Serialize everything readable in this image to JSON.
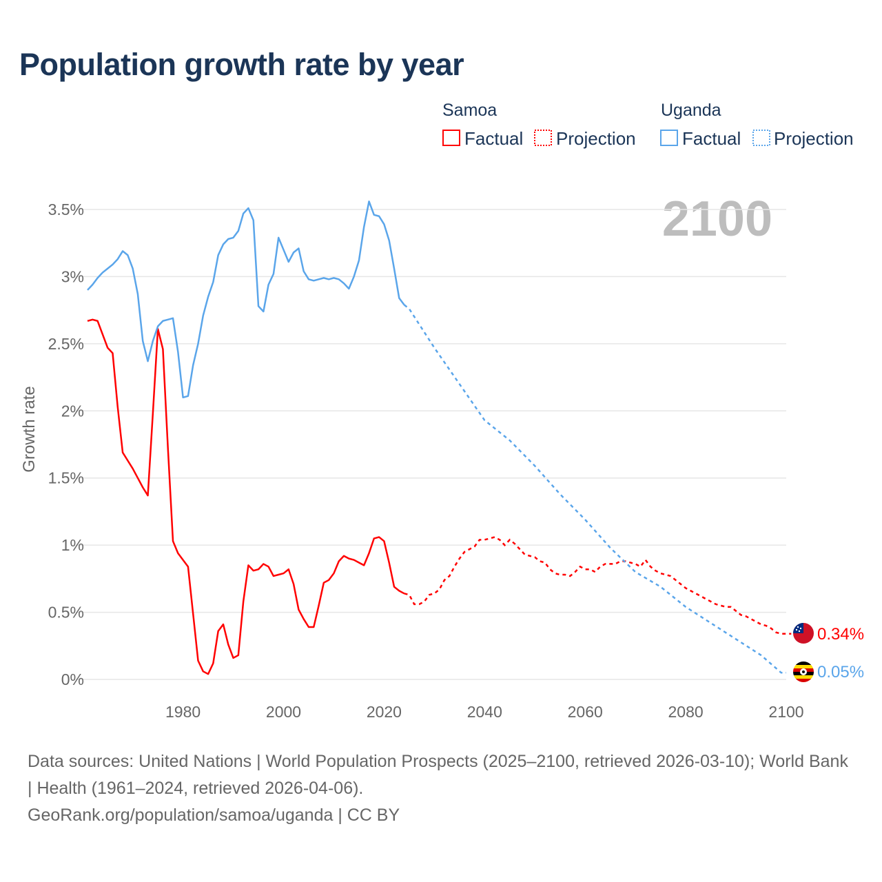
{
  "title": "Population growth rate by year",
  "legend": {
    "groups": [
      {
        "name": "Samoa",
        "color": "#ff0000",
        "factual": "Factual",
        "projection": "Projection"
      },
      {
        "name": "Uganda",
        "color": "#5aa5ea",
        "factual": "Factual",
        "projection": "Projection"
      }
    ],
    "placement": "top-right"
  },
  "year_watermark": "2100",
  "footer": {
    "sources": "Data sources: United Nations | World Population Prospects (2025–2100, retrieved 2026-03-10); World Bank | Health (1961–2024, retrieved 2026-04-06).",
    "site": "GeoRank.org/population/samoa/uganda | CC BY"
  },
  "chart_data": {
    "type": "line",
    "title": "Population growth rate by year",
    "xlabel": "",
    "ylabel": "Growth rate",
    "xlim": [
      1961,
      2100
    ],
    "ylim": [
      0,
      3.5
    ],
    "x_ticks": [
      1980,
      2000,
      2020,
      2040,
      2060,
      2080,
      2100
    ],
    "y_ticks": [
      0,
      0.5,
      1,
      1.5,
      2,
      2.5,
      3,
      3.5
    ],
    "y_tick_labels": [
      "0%",
      "0.5%",
      "1%",
      "1.5%",
      "2%",
      "2.5%",
      "3%",
      "3.5%"
    ],
    "x_tick_labels": [
      "1980",
      "2000",
      "2020",
      "2040",
      "2060",
      "2080",
      "2100"
    ],
    "grid": true,
    "series": [
      {
        "name": "Samoa",
        "color": "#ff0000",
        "end_label": "0.34%",
        "factual": {
          "start_year": 1961,
          "values": [
            2.67,
            2.68,
            2.67,
            2.57,
            2.47,
            2.43,
            2.03,
            1.69,
            1.63,
            1.57,
            1.5,
            1.43,
            1.37,
            1.98,
            2.61,
            2.46,
            1.72,
            1.03,
            0.94,
            0.89,
            0.84,
            0.49,
            0.14,
            0.06,
            0.04,
            0.12,
            0.36,
            0.41,
            0.26,
            0.16,
            0.18,
            0.58,
            0.85,
            0.81,
            0.82,
            0.86,
            0.84,
            0.77,
            0.78,
            0.79,
            0.82,
            0.71,
            0.52,
            0.45,
            0.39,
            0.39,
            0.55,
            0.72,
            0.74,
            0.79,
            0.88,
            0.92,
            0.9,
            0.89,
            0.87,
            0.85,
            0.94,
            1.05,
            1.06,
            1.03,
            0.87,
            0.69,
            0.66,
            0.64
          ]
        },
        "projection": {
          "start_year": 2024,
          "values": [
            0.64,
            0.63,
            0.56,
            0.56,
            0.58,
            0.63,
            0.64,
            0.67,
            0.74,
            0.77,
            0.84,
            0.9,
            0.95,
            0.97,
            0.99,
            1.04,
            1.04,
            1.05,
            1.06,
            1.04,
            1.0,
            1.04,
            1.01,
            0.97,
            0.93,
            0.92,
            0.91,
            0.88,
            0.87,
            0.82,
            0.79,
            0.78,
            0.78,
            0.77,
            0.8,
            0.84,
            0.82,
            0.82,
            0.8,
            0.84,
            0.86,
            0.86,
            0.86,
            0.88,
            0.88,
            0.87,
            0.86,
            0.84,
            0.89,
            0.84,
            0.81,
            0.79,
            0.78,
            0.77,
            0.74,
            0.71,
            0.68,
            0.66,
            0.64,
            0.62,
            0.6,
            0.58,
            0.56,
            0.55,
            0.54,
            0.54,
            0.51,
            0.48,
            0.47,
            0.45,
            0.43,
            0.41,
            0.4,
            0.38,
            0.35,
            0.34,
            0.34,
            0.34
          ]
        }
      },
      {
        "name": "Uganda",
        "color": "#5aa5ea",
        "end_label": "0.05%",
        "factual": {
          "start_year": 1961,
          "values": [
            2.9,
            2.94,
            2.99,
            3.03,
            3.06,
            3.09,
            3.13,
            3.19,
            3.16,
            3.06,
            2.87,
            2.52,
            2.37,
            2.52,
            2.63,
            2.67,
            2.68,
            2.69,
            2.44,
            2.1,
            2.11,
            2.34,
            2.5,
            2.71,
            2.85,
            2.96,
            3.16,
            3.24,
            3.28,
            3.29,
            3.34,
            3.47,
            3.51,
            3.42,
            2.78,
            2.74,
            2.94,
            3.02,
            3.29,
            3.2,
            3.11,
            3.18,
            3.21,
            3.04,
            2.98,
            2.97,
            2.98,
            2.99,
            2.98,
            2.99,
            2.98,
            2.95,
            2.91,
            3.0,
            3.12,
            3.37,
            3.56,
            3.46,
            3.45,
            3.39,
            3.27,
            3.06,
            2.84,
            2.79
          ]
        },
        "projection": {
          "years": [
            2024,
            2025,
            2030,
            2035,
            2040,
            2045,
            2050,
            2055,
            2060,
            2065,
            2070,
            2075,
            2080,
            2085,
            2090,
            2095,
            2099,
            2100
          ],
          "values": [
            2.79,
            2.76,
            2.47,
            2.2,
            1.93,
            1.78,
            1.59,
            1.38,
            1.19,
            0.98,
            0.8,
            0.69,
            0.54,
            0.42,
            0.3,
            0.18,
            0.05,
            0.05
          ]
        }
      }
    ]
  }
}
